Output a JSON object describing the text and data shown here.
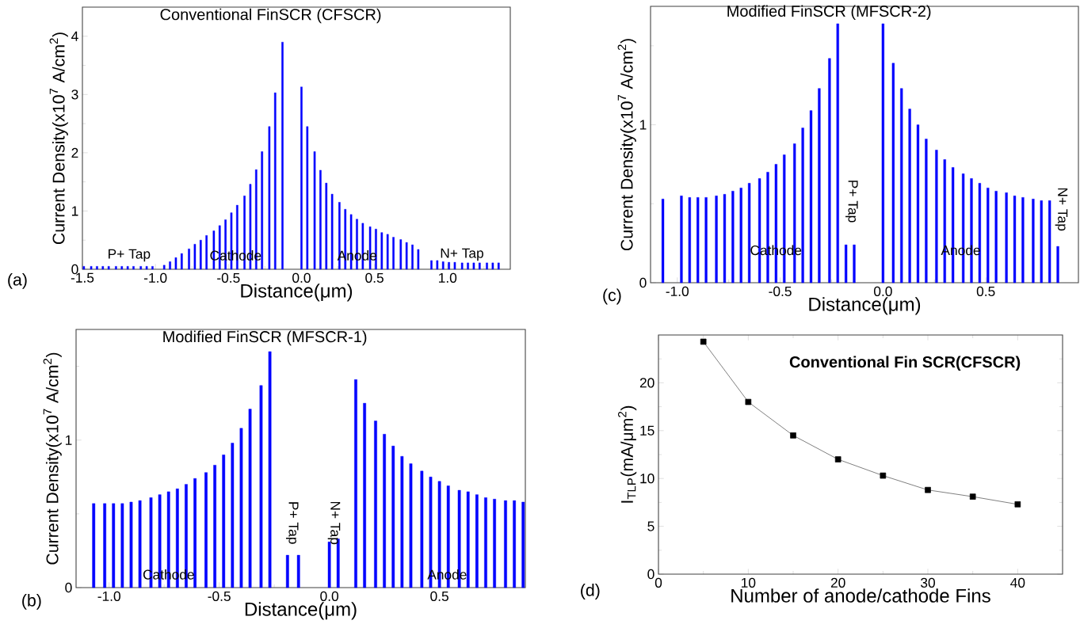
{
  "chart_data": [
    {
      "type": "bar",
      "title": "Conventional FinSCR (CFSCR)",
      "xlabel": "Distance(μm)",
      "ylabel": "Current Density(x10$^{7}$ A/cm$^{2}$)",
      "color": "#0000ff",
      "x": [
        -1.49,
        -1.44,
        -1.4,
        -1.36,
        -1.32,
        -1.27,
        -1.23,
        -1.19,
        -1.15,
        -1.1,
        -1.06,
        -1.02,
        -0.94,
        -0.9,
        -0.86,
        -0.82,
        -0.77,
        -0.73,
        -0.69,
        -0.65,
        -0.6,
        -0.56,
        -0.52,
        -0.48,
        -0.44,
        -0.39,
        -0.35,
        -0.31,
        -0.27,
        -0.22,
        -0.18,
        -0.13,
        0.0,
        0.04,
        0.09,
        0.13,
        0.17,
        0.21,
        0.26,
        0.3,
        0.34,
        0.38,
        0.42,
        0.47,
        0.51,
        0.55,
        0.59,
        0.63,
        0.68,
        0.72,
        0.76,
        0.8,
        0.89,
        0.93,
        0.97,
        1.01,
        1.05,
        1.1,
        1.14,
        1.18,
        1.22,
        1.27,
        1.31,
        1.35
      ],
      "values": [
        0.05,
        0.05,
        0.05,
        0.05,
        0.05,
        0.05,
        0.05,
        0.05,
        0.05,
        0.05,
        0.05,
        0.05,
        0.07,
        0.13,
        0.2,
        0.27,
        0.35,
        0.43,
        0.5,
        0.58,
        0.66,
        0.75,
        0.85,
        0.97,
        1.1,
        1.26,
        1.46,
        1.71,
        2.02,
        2.45,
        3.03,
        3.9,
        3.13,
        2.45,
        2.02,
        1.7,
        1.48,
        1.29,
        1.15,
        1.03,
        0.94,
        0.86,
        0.79,
        0.73,
        0.69,
        0.63,
        0.6,
        0.55,
        0.51,
        0.46,
        0.42,
        0.34,
        0.15,
        0.15,
        0.13,
        0.12,
        0.12,
        0.11,
        0.11,
        0.11,
        0.11,
        0.11,
        0.11,
        0.11
      ],
      "xlim": [
        -1.5,
        1.43
      ],
      "ylim": [
        0,
        4.5
      ],
      "xticks": [
        {
          "value": -1.5,
          "label": "-1.5"
        },
        {
          "value": -1.0,
          "label": "-1.0"
        },
        {
          "value": -0.5,
          "label": "-0.5"
        },
        {
          "value": 0.0,
          "label": "0.0"
        },
        {
          "value": 0.5,
          "label": "0.5"
        },
        {
          "value": 1.0,
          "label": "1.0"
        },
        {
          "value": -1.25,
          "label": null
        },
        {
          "value": -0.75,
          "label": null
        },
        {
          "value": -0.25,
          "label": null
        },
        {
          "value": 0.25,
          "label": null
        },
        {
          "value": 0.75,
          "label": null
        },
        {
          "value": 1.25,
          "label": null
        }
      ],
      "yticks": [
        0,
        1,
        2,
        3,
        4,
        {
          "value": 0.5,
          "label": null
        },
        {
          "value": 1.5,
          "label": null
        },
        {
          "value": 2.5,
          "label": null
        },
        {
          "value": 3.5,
          "label": null
        }
      ],
      "annotations": [
        "P+ Tap",
        "Cathode",
        "Anode",
        "N+ Tap",
        "(a)"
      ]
    },
    {
      "type": "bar",
      "title": "Modified FinSCR (MFSCR-1)",
      "xlabel": "Distance(μm)",
      "ylabel": "Current Density(x10$^{7}$ A/cm$^{2}$)",
      "color": "#0000ff",
      "x": [
        -1.07,
        -1.02,
        -0.98,
        -0.94,
        -0.9,
        -0.86,
        -0.81,
        -0.77,
        -0.73,
        -0.69,
        -0.65,
        -0.61,
        -0.56,
        -0.52,
        -0.48,
        -0.44,
        -0.4,
        -0.36,
        -0.31,
        -0.27,
        -0.19,
        -0.14,
        0.0,
        0.04,
        0.12,
        0.16,
        0.21,
        0.25,
        0.29,
        0.33,
        0.37,
        0.42,
        0.46,
        0.5,
        0.54,
        0.59,
        0.63,
        0.67,
        0.71,
        0.75,
        0.8,
        0.84,
        0.88
      ],
      "values": [
        0.57,
        0.57,
        0.57,
        0.57,
        0.58,
        0.59,
        0.61,
        0.63,
        0.65,
        0.67,
        0.7,
        0.74,
        0.78,
        0.83,
        0.9,
        0.98,
        1.08,
        1.21,
        1.37,
        1.6,
        0.22,
        0.22,
        0.31,
        0.33,
        1.41,
        1.25,
        1.13,
        1.04,
        0.96,
        0.89,
        0.84,
        0.79,
        0.75,
        0.72,
        0.69,
        0.66,
        0.65,
        0.63,
        0.61,
        0.6,
        0.59,
        0.59,
        0.58
      ],
      "xlim": [
        -1.15,
        0.89
      ],
      "ylim": [
        0,
        1.75
      ],
      "xticks": [
        {
          "value": -1.0,
          "label": "-1.0"
        },
        {
          "value": -0.5,
          "label": "-0.5"
        },
        {
          "value": 0.0,
          "label": "0.0"
        },
        {
          "value": 0.5,
          "label": "0.5"
        },
        {
          "value": -0.75,
          "label": null
        },
        {
          "value": -0.25,
          "label": null
        },
        {
          "value": 0.25,
          "label": null
        },
        {
          "value": 0.75,
          "label": null
        }
      ],
      "yticks": [
        0,
        1,
        {
          "value": 0.5,
          "label": null
        },
        {
          "value": 1.5,
          "label": null
        }
      ],
      "annotations": [
        "Cathode",
        "P+ Tap",
        "N+ Tap",
        "Anode",
        "(b)"
      ]
    },
    {
      "type": "bar",
      "title": "Modified FinSCR (MFSCR-2)",
      "xlabel": "Distance(μm)",
      "ylabel": "Current Density(x10$^{7}$ A/cm$^{2}$)",
      "color": "#0000ff",
      "x": [
        -1.07,
        -0.98,
        -0.94,
        -0.9,
        -0.86,
        -0.81,
        -0.77,
        -0.73,
        -0.69,
        -0.65,
        -0.6,
        -0.56,
        -0.52,
        -0.48,
        -0.43,
        -0.39,
        -0.35,
        -0.31,
        -0.26,
        -0.22,
        -0.18,
        -0.14,
        0.0,
        0.05,
        0.09,
        0.13,
        0.17,
        0.21,
        0.26,
        0.3,
        0.34,
        0.39,
        0.43,
        0.47,
        0.51,
        0.55,
        0.6,
        0.64,
        0.68,
        0.73,
        0.77,
        0.81,
        0.85
      ],
      "values": [
        0.53,
        0.55,
        0.54,
        0.54,
        0.54,
        0.55,
        0.56,
        0.58,
        0.6,
        0.63,
        0.66,
        0.7,
        0.75,
        0.81,
        0.88,
        0.98,
        1.09,
        1.23,
        1.42,
        1.64,
        0.24,
        0.24,
        1.64,
        1.39,
        1.23,
        1.1,
        1.0,
        0.91,
        0.84,
        0.78,
        0.73,
        0.69,
        0.66,
        0.63,
        0.6,
        0.58,
        0.57,
        0.55,
        0.54,
        0.53,
        0.52,
        0.52,
        0.23
      ],
      "xlim": [
        -1.13,
        0.95
      ],
      "ylim": [
        0,
        1.75
      ],
      "xticks": [
        {
          "value": -1.0,
          "label": "-1.0"
        },
        {
          "value": -0.5,
          "label": "-0.5"
        },
        {
          "value": 0.0,
          "label": "0.0"
        },
        {
          "value": 0.5,
          "label": "0.5"
        },
        {
          "value": -0.75,
          "label": null
        },
        {
          "value": -0.25,
          "label": null
        },
        {
          "value": 0.25,
          "label": null
        }
      ],
      "yticks": [
        0,
        1,
        {
          "value": 0.5,
          "label": null
        },
        {
          "value": 1.5,
          "label": null
        }
      ],
      "annotations": [
        "Cathode",
        "P+ Tap",
        "Anode",
        "N+ Tap",
        "(c)"
      ]
    },
    {
      "type": "line",
      "title": "Conventional Fin SCR(CFSCR)",
      "xlabel": "Number of anode/cathode Fins",
      "ylabel": "I$_{TLP}$(mA/μm$^{2}$)",
      "color": "#404040",
      "marker": "square",
      "x": [
        5,
        10,
        15,
        20,
        25,
        30,
        35,
        40
      ],
      "values": [
        24.3,
        18,
        14.5,
        12,
        10.3,
        8.8,
        8.1,
        7.3
      ],
      "xlim": [
        0,
        45
      ],
      "ylim": [
        0,
        25
      ],
      "xticks": [
        0,
        10,
        20,
        30,
        40,
        {
          "value": 5,
          "label": null
        },
        {
          "value": 15,
          "label": null
        },
        {
          "value": 25,
          "label": null
        },
        {
          "value": 35,
          "label": null
        }
      ],
      "yticks": [
        0,
        5,
        10,
        15,
        20,
        {
          "value": 2.5,
          "label": null
        },
        {
          "value": 7.5,
          "label": null
        },
        {
          "value": 12.5,
          "label": null
        },
        {
          "value": 17.5,
          "label": null
        },
        {
          "value": 22.5,
          "label": null
        }
      ],
      "annotations": [
        "(d)"
      ]
    }
  ]
}
